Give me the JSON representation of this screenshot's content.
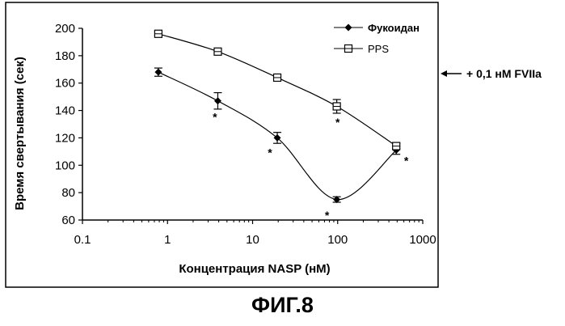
{
  "chart_data": {
    "type": "line",
    "xlabel": "Концентрация NASP (нМ)",
    "ylabel": "Время свертывания (сек)",
    "xscale": "log",
    "xlim": [
      0.1,
      1000
    ],
    "ylim": [
      60,
      200
    ],
    "x_ticks": [
      "0.1",
      "1",
      "10",
      "100",
      "1000"
    ],
    "y_ticks": [
      "60",
      "80",
      "100",
      "120",
      "140",
      "160",
      "180",
      "200"
    ],
    "grid": false,
    "legend_position": "top-right",
    "series": [
      {
        "name": "Фукоидан",
        "marker": "diamond",
        "color": "#000000",
        "x": [
          0.78,
          3.9,
          19.5,
          97.6,
          488
        ],
        "y": [
          168,
          147,
          120,
          75,
          111
        ],
        "error": [
          3,
          6,
          4,
          2,
          3
        ]
      },
      {
        "name": "PPS",
        "marker": "square",
        "color": "#000000",
        "x": [
          0.78,
          3.9,
          19.5,
          97.6,
          488
        ],
        "y": [
          196,
          183,
          164,
          143,
          114
        ],
        "error": [
          1.5,
          1,
          1.5,
          5,
          2
        ]
      }
    ],
    "significance_marks": [
      {
        "text": "*",
        "x": 3.6,
        "y": 136
      },
      {
        "text": "*",
        "x": 16,
        "y": 110
      },
      {
        "text": "*",
        "x": 75,
        "y": 64
      },
      {
        "text": "*",
        "x": 100,
        "y": 132
      },
      {
        "text": "*",
        "x": 640,
        "y": 104
      }
    ],
    "annotation": {
      "text": "+ 0,1 нМ FVIIa",
      "arrow": "left"
    }
  },
  "caption": "ФИГ.8"
}
